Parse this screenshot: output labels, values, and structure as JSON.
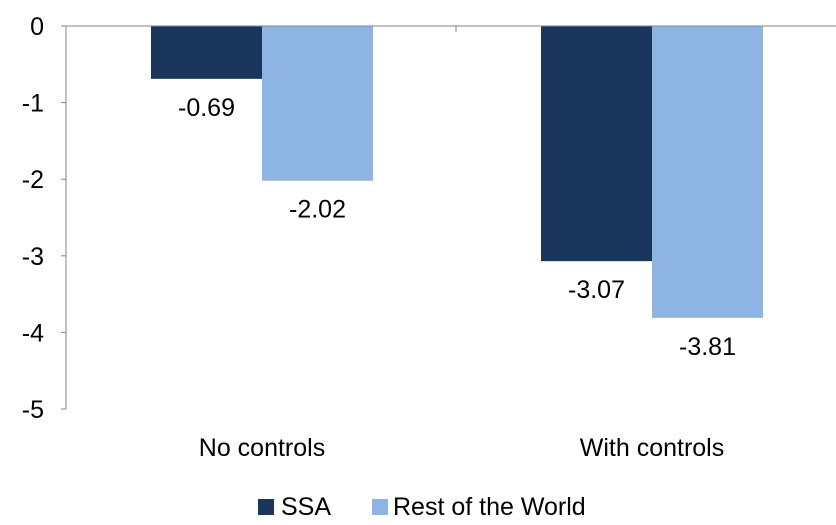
{
  "chart_data": {
    "type": "bar",
    "categories": [
      "No controls",
      "With controls"
    ],
    "series": [
      {
        "name": "SSA",
        "color": "#1b365d",
        "values": [
          -0.69,
          -3.07
        ]
      },
      {
        "name": "Rest of the World",
        "color": "#8db4e2",
        "values": [
          -2.02,
          -3.81
        ]
      }
    ],
    "data_labels": [
      [
        "-0.69",
        "-3.07"
      ],
      [
        "-2.02",
        "-3.81"
      ]
    ],
    "yticks": [
      0,
      -1,
      -2,
      -3,
      -4,
      -5
    ],
    "ylim": [
      -5,
      0
    ],
    "title": "",
    "xlabel": "",
    "ylabel": "",
    "grid": false,
    "legend_position": "bottom"
  }
}
